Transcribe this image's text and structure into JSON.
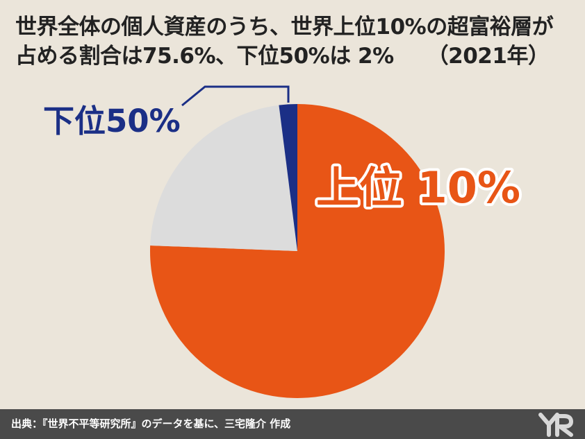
{
  "title": {
    "line1": "世界全体の個人資産のうち、世界上位10%の超富裕層が",
    "line2": "占める割合は75.6%、下位50%は 2%",
    "year": "（2021年）"
  },
  "chart_data": {
    "type": "pie",
    "slices": [
      {
        "label": "上位 10%",
        "value": 75.6,
        "color": "#e85516"
      },
      {
        "label": "",
        "value": 22.4,
        "color": "#dcdcdc"
      },
      {
        "label": "下位50%",
        "value": 2.0,
        "color": "#1b2f86"
      }
    ]
  },
  "footer": {
    "source": "出典：『世界不平等研究所』のデータを基に、三宅隆介 作成"
  }
}
